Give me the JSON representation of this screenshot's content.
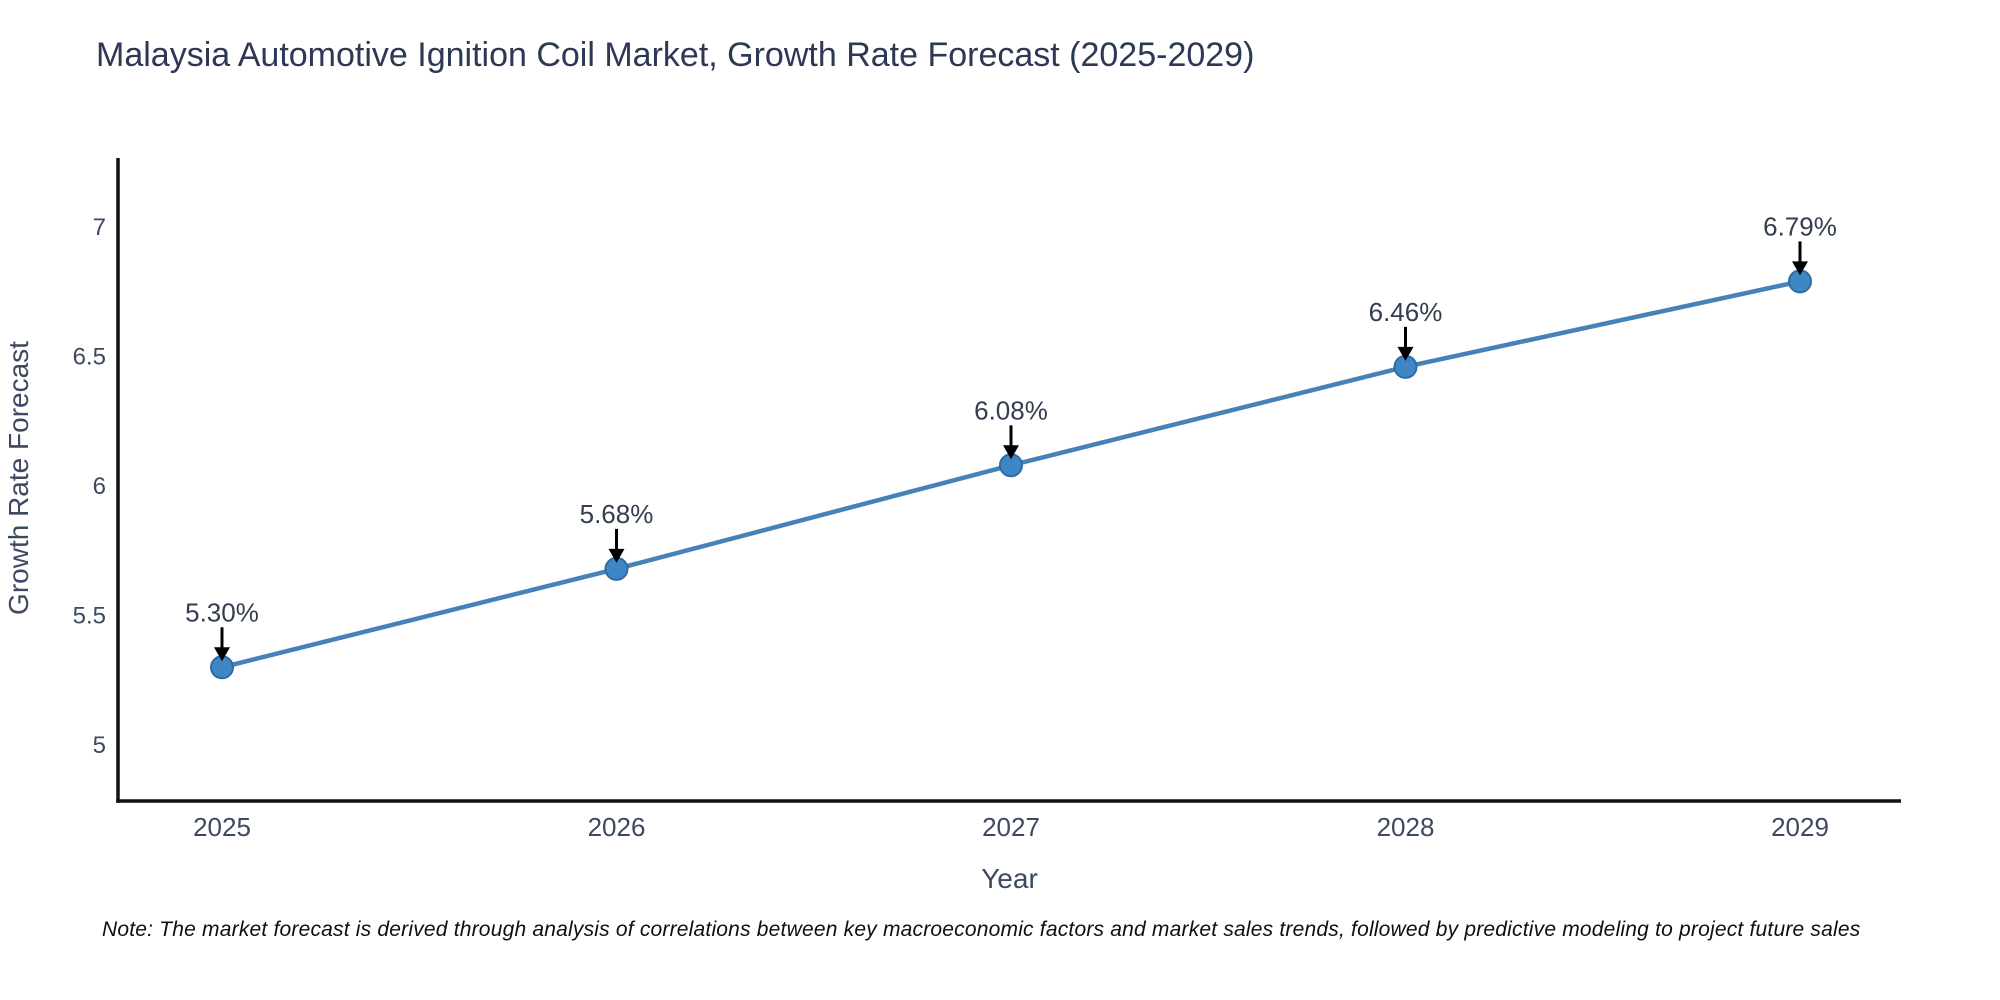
{
  "chart_data": {
    "type": "line",
    "title": "Malaysia Automotive Ignition Coil Market, Growth Rate Forecast (2025-2029)",
    "xlabel": "Year",
    "ylabel": "Growth Rate Forecast",
    "x": [
      2025,
      2026,
      2027,
      2028,
      2029
    ],
    "xtick_labels": [
      "2025",
      "2026",
      "2027",
      "2028",
      "2029"
    ],
    "series": [
      {
        "name": "Growth Rate Forecast",
        "values": [
          5.3,
          5.68,
          6.08,
          6.46,
          6.79
        ],
        "point_labels": [
          "5.30%",
          "5.68%",
          "6.08%",
          "6.46%",
          "6.79%"
        ]
      }
    ],
    "yticks": [
      5,
      5.5,
      6,
      6.5,
      7
    ],
    "ytick_labels": [
      "5",
      "5.5",
      "6",
      "6.5",
      "7"
    ],
    "ylim": [
      4.78,
      7.26
    ],
    "xlim": [
      2024.74,
      2029.26
    ],
    "grid": false,
    "legend": null,
    "annotation_style": "value-label-with-black-arrow-above-each-point",
    "colors": {
      "line": "#4682b8",
      "marker_fill": "#3f86c5",
      "marker_edge": "#2e6ca3",
      "spine": "#111111",
      "title_text": "#2c3854",
      "tick_text": "#3d4961",
      "annotation_text": "#333d4f",
      "arrow": "#000000"
    }
  },
  "footer_note": "Note: The market forecast is derived through analysis of correlations between key macroeconomic factors and market sales trends, followed by predictive modeling to project future sales"
}
